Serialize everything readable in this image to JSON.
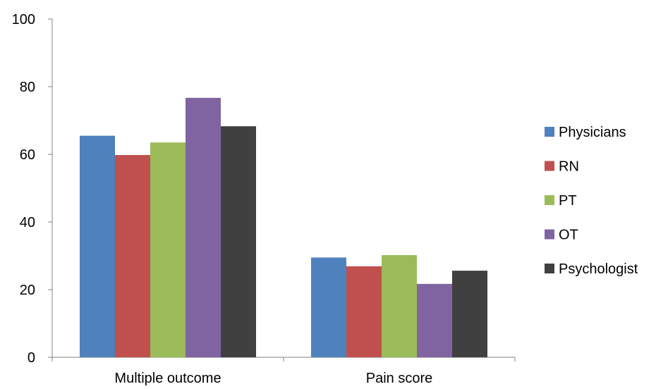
{
  "chart_data": {
    "type": "bar",
    "categories": [
      "Multiple outcome",
      "Pain score"
    ],
    "series": [
      {
        "name": "Physicians",
        "values": [
          65.5,
          29.5
        ],
        "color": "#4F81BD"
      },
      {
        "name": "RN",
        "values": [
          59.8,
          26.9
        ],
        "color": "#C0504D"
      },
      {
        "name": "PT",
        "values": [
          63.5,
          30.2
        ],
        "color": "#9BBB59"
      },
      {
        "name": "OT",
        "values": [
          76.7,
          21.7
        ],
        "color": "#8064A2"
      },
      {
        "name": "Psychologist",
        "values": [
          68.3,
          25.6
        ],
        "color": "#404040"
      }
    ],
    "yticks": [
      "0",
      "20",
      "40",
      "60",
      "80",
      "100"
    ],
    "ylim": [
      0,
      100
    ],
    "grid": false,
    "legend_position": "right"
  }
}
